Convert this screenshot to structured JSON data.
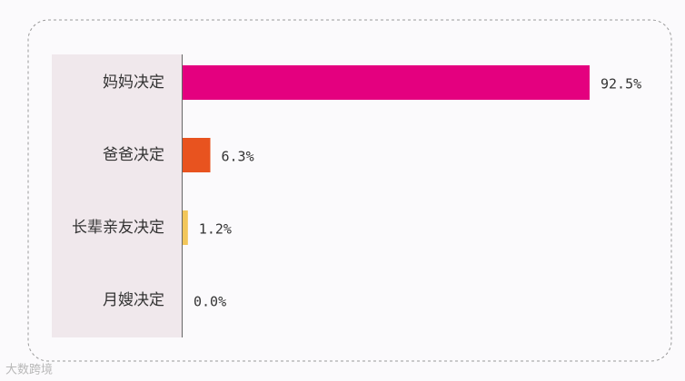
{
  "chart_data": {
    "type": "bar",
    "orientation": "horizontal",
    "categories": [
      "妈妈决定",
      "爸爸决定",
      "长辈亲友决定",
      "月嫂决定"
    ],
    "values": [
      92.5,
      6.3,
      1.2,
      0.0
    ],
    "value_labels": [
      "92.5%",
      "6.3%",
      "1.2%",
      "0.0%"
    ],
    "colors": [
      "#e4007f",
      "#e8531f",
      "#f2c65a",
      "#cccccc"
    ]
  },
  "watermark": "大数跨境"
}
